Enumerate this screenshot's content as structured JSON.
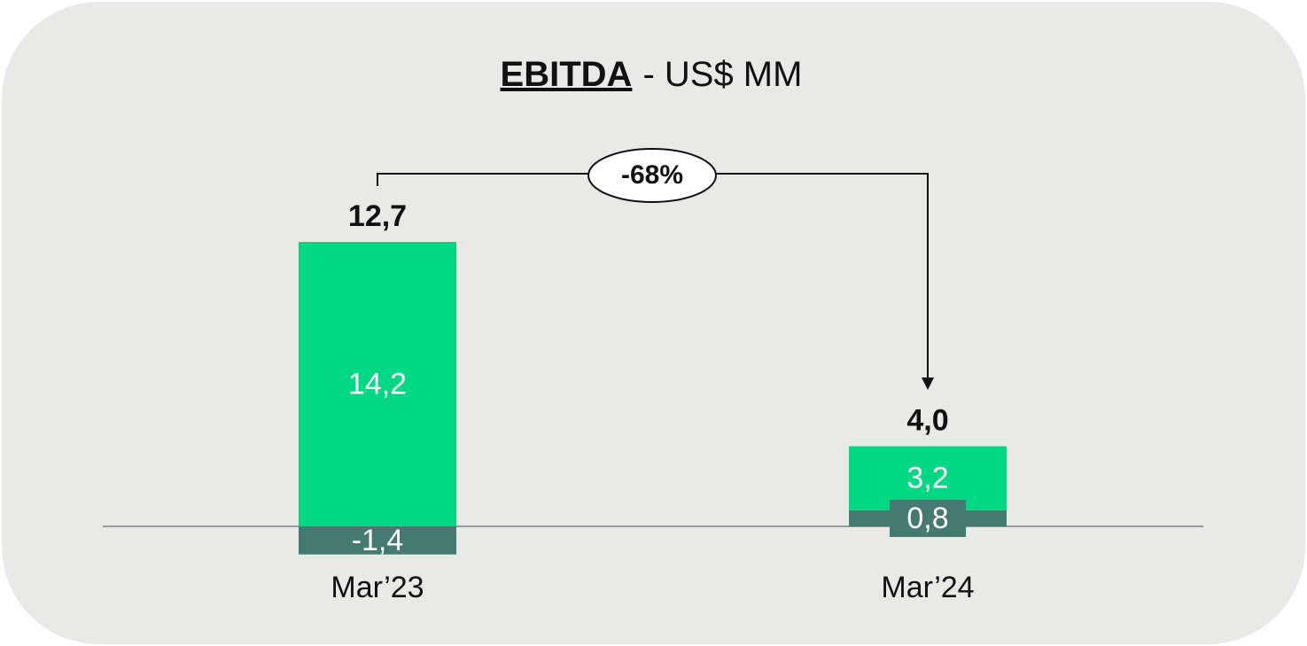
{
  "chart_data": {
    "type": "stacked_bar",
    "title": {
      "bold": "EBITDA",
      "rest": "- US$ MM"
    },
    "categories": [
      "Mar’23",
      "Mar’24"
    ],
    "series": [
      {
        "color": "#457a72",
        "values": [
          -1.4,
          0.8
        ],
        "value_labels": [
          "-1,4",
          "0,8"
        ]
      },
      {
        "color": "#00d884",
        "values": [
          14.2,
          3.2
        ],
        "value_labels": [
          "14,2",
          "3,2"
        ]
      }
    ],
    "totals": {
      "values": [
        12.7,
        4.0
      ],
      "value_labels": [
        "12,7",
        "4,0"
      ]
    },
    "annotation": "-68%"
  }
}
